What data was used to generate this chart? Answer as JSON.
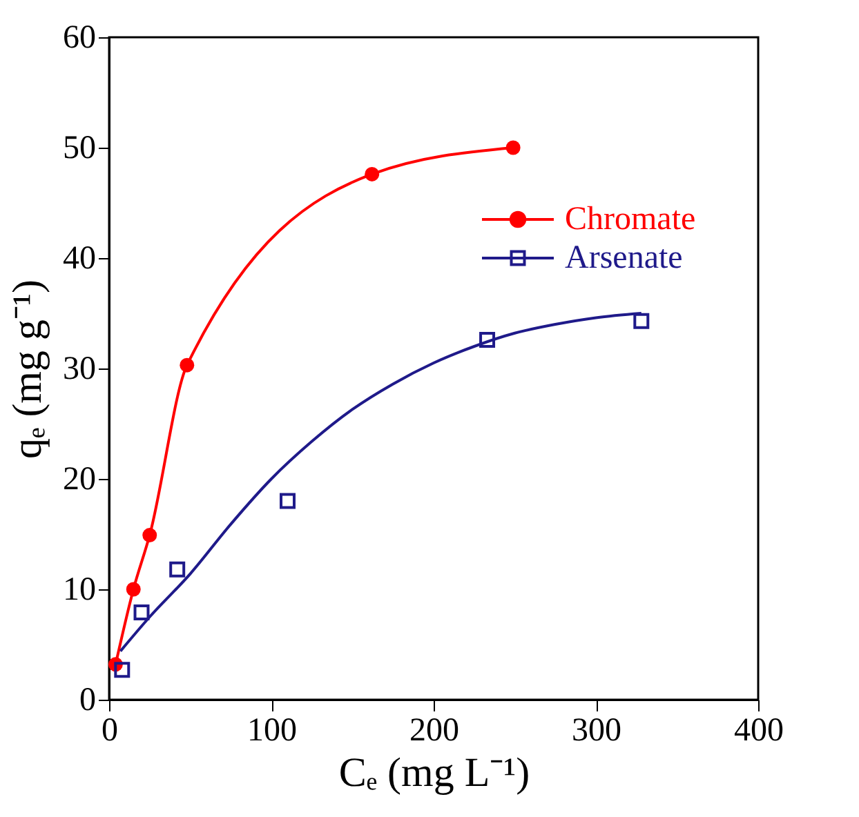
{
  "chart_data": {
    "type": "scatter",
    "xlabel": "Cₑ (mg L⁻¹)",
    "ylabel": "qₑ (mg g⁻¹)",
    "xlim": [
      0,
      400
    ],
    "xticks": [
      0,
      100,
      200,
      300,
      400
    ],
    "ylim": [
      0,
      60
    ],
    "yticks": [
      0,
      10,
      20,
      30,
      40,
      50,
      60
    ],
    "grid": false,
    "legend": "top right",
    "series": [
      {
        "name": "Chromate",
        "type": "line",
        "marker": "circle",
        "color": "#ff0000",
        "x": [
          4,
          15,
          25,
          48,
          162,
          249
        ],
        "values": [
          3.2,
          10.0,
          14.9,
          30.3,
          47.6,
          50.0
        ]
      },
      {
        "name": "Arsenate",
        "marker": "square",
        "color": "#1f1a8a",
        "x": [
          8,
          20,
          42,
          110,
          233,
          328
        ],
        "values": [
          2.7,
          7.9,
          11.8,
          18.0,
          32.6,
          34.3
        ]
      },
      {
        "type": "line",
        "marker": "none",
        "color": "#1f1a8a",
        "x": [
          7,
          25,
          50,
          75,
          100,
          125,
          150,
          175,
          200,
          225,
          250,
          275,
          300,
          328
        ],
        "values": [
          4.4,
          7.5,
          11.4,
          15.9,
          20.0,
          23.4,
          26.3,
          28.6,
          30.5,
          32.0,
          33.2,
          34.0,
          34.6,
          35.0
        ]
      }
    ]
  }
}
